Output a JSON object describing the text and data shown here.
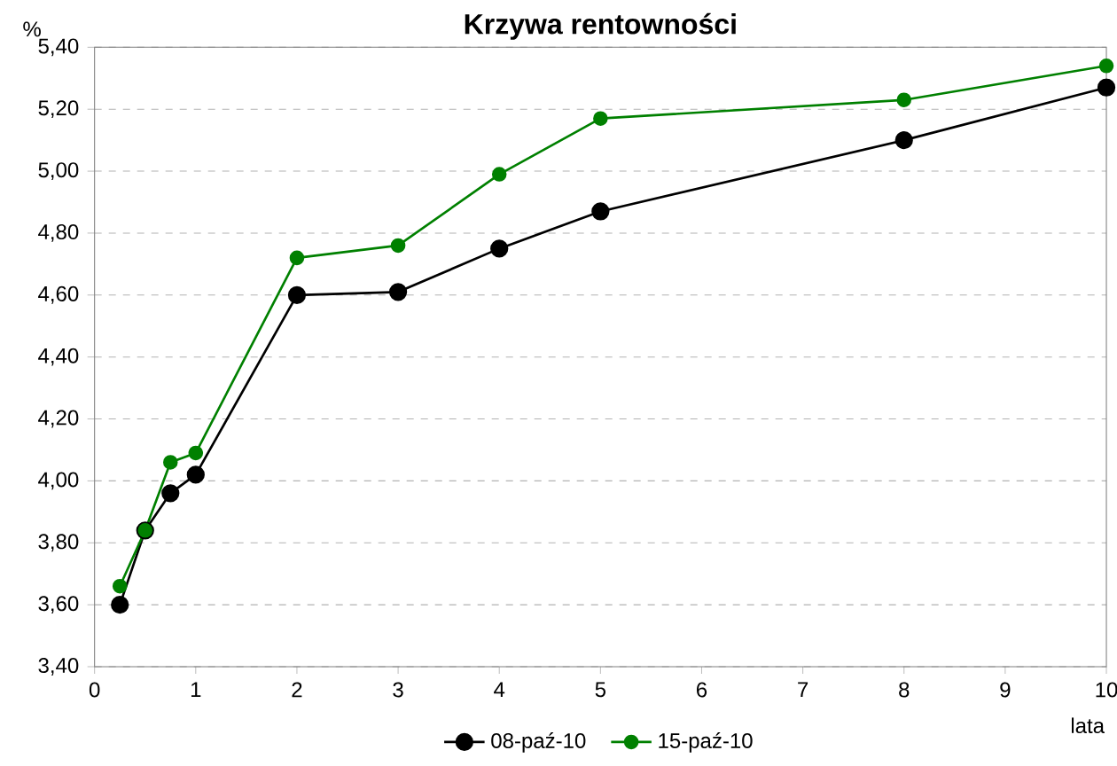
{
  "chart_data": {
    "type": "line",
    "title": "Krzywa rentowności",
    "ylabel": "%",
    "xlabel": "lata",
    "x": [
      0.25,
      0.5,
      0.75,
      1,
      2,
      3,
      4,
      5,
      8,
      10
    ],
    "series": [
      {
        "name": "08-paź-10",
        "color": "#000000",
        "values": [
          3.6,
          3.84,
          3.96,
          4.02,
          4.6,
          4.61,
          4.75,
          4.87,
          5.1,
          5.27
        ]
      },
      {
        "name": "15-paź-10",
        "color": "#008000",
        "values": [
          3.66,
          3.84,
          4.06,
          4.09,
          4.72,
          4.76,
          4.99,
          5.17,
          5.23,
          5.34
        ]
      }
    ],
    "xlim": [
      0,
      10
    ],
    "xticks": [
      0,
      1,
      2,
      3,
      4,
      5,
      6,
      7,
      8,
      9,
      10
    ],
    "ylim": [
      3.4,
      5.4
    ],
    "yticks": [
      {
        "value": 3.4,
        "label": "3,40"
      },
      {
        "value": 3.6,
        "label": "3,60"
      },
      {
        "value": 3.8,
        "label": "3,80"
      },
      {
        "value": 4.0,
        "label": "4,00"
      },
      {
        "value": 4.2,
        "label": "4,20"
      },
      {
        "value": 4.4,
        "label": "4,40"
      },
      {
        "value": 4.6,
        "label": "4,60"
      },
      {
        "value": 4.8,
        "label": "4,80"
      },
      {
        "value": 5.0,
        "label": "5,00"
      },
      {
        "value": 5.2,
        "label": "5,20"
      },
      {
        "value": 5.4,
        "label": "5,40"
      }
    ],
    "grid": "y",
    "legend": "bottom",
    "marker": "circle",
    "line_style": "solid"
  }
}
